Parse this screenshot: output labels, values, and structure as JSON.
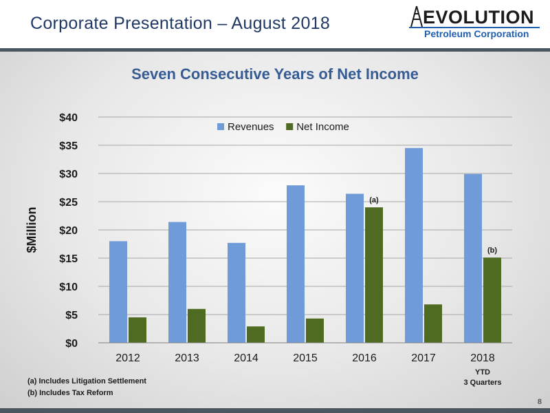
{
  "header": {
    "title": "Corporate Presentation – August 2018",
    "logo_word": "EVOLUTION",
    "logo_sub": "Petroleum Corporation"
  },
  "slide_title": "Seven Consecutive Years of Net Income",
  "chart_data": {
    "type": "bar",
    "categories": [
      "2012",
      "2013",
      "2014",
      "2015",
      "2016",
      "2017",
      "2018"
    ],
    "category_sublabels": [
      "",
      "",
      "",
      "",
      "",
      "",
      "YTD\n3 Quarters"
    ],
    "series": [
      {
        "name": "Revenues",
        "color": "#6f9bd8",
        "values": [
          18.0,
          21.4,
          17.7,
          27.9,
          26.4,
          34.5,
          29.9
        ]
      },
      {
        "name": "Net Income",
        "color": "#4e6b21",
        "values": [
          4.5,
          6.0,
          2.9,
          4.3,
          24.0,
          6.8,
          15.1
        ]
      }
    ],
    "ylabel": "$Million",
    "ylim": [
      0,
      40
    ],
    "yticks": [
      0,
      5,
      10,
      15,
      20,
      25,
      30,
      35,
      40
    ],
    "ytick_labels": [
      "$0",
      "$5",
      "$10",
      "$15",
      "$20",
      "$25",
      "$30",
      "$35",
      "$40"
    ],
    "grid": true,
    "legend": "top-center",
    "annotations": [
      {
        "text": "(a)",
        "category": "2016",
        "series": "Net Income"
      },
      {
        "text": "(b)",
        "category": "2018",
        "series": "Net Income"
      }
    ]
  },
  "footnotes": {
    "a": "(a)  Includes Litigation Settlement",
    "b": "(b)  Includes Tax Reform"
  },
  "page_number": "8"
}
